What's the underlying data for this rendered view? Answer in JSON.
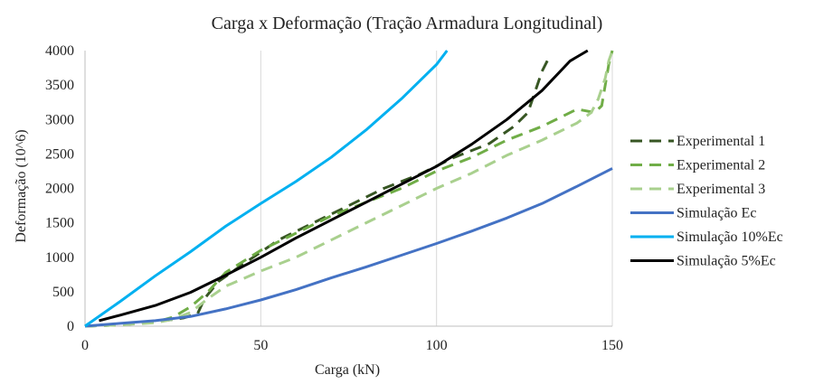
{
  "chart_data": {
    "type": "line",
    "title": "Carga x Deformação (Tração Armadura Longitudinal)",
    "xlabel": "Carga (kN)",
    "ylabel": "Deformação (10^6)",
    "xlim": [
      0,
      150
    ],
    "ylim": [
      0,
      4000
    ],
    "xticks": [
      "0",
      "50",
      "100",
      "150"
    ],
    "yticks": [
      "0",
      "500",
      "1000",
      "1500",
      "2000",
      "2500",
      "3000",
      "3500",
      "4000"
    ],
    "grid": "vertical",
    "legend_position": "right",
    "series": [
      {
        "name": "Experimental 1",
        "color": "#375623",
        "dash": "dashed",
        "x": [
          0,
          10,
          20,
          28,
          32,
          34,
          38,
          45,
          55,
          65,
          75,
          85,
          95,
          105,
          115,
          122,
          126,
          128,
          130,
          132
        ],
        "y": [
          0,
          20,
          60,
          120,
          180,
          400,
          650,
          900,
          1250,
          1500,
          1750,
          2000,
          2200,
          2450,
          2650,
          2900,
          3100,
          3400,
          3700,
          3900
        ]
      },
      {
        "name": "Experimental 2",
        "color": "#70AD47",
        "dash": "dashed",
        "x": [
          0,
          10,
          20,
          25,
          30,
          35,
          40,
          50,
          60,
          70,
          80,
          90,
          100,
          110,
          120,
          130,
          140,
          145,
          147,
          148,
          149,
          150
        ],
        "y": [
          0,
          20,
          60,
          130,
          280,
          500,
          780,
          1100,
          1350,
          1600,
          1800,
          2000,
          2250,
          2450,
          2700,
          2900,
          3150,
          3100,
          3200,
          3500,
          3800,
          4000
        ]
      },
      {
        "name": "Experimental 3",
        "color": "#A9D08E",
        "dash": "dashed",
        "x": [
          0,
          10,
          20,
          25,
          30,
          35,
          40,
          50,
          60,
          70,
          80,
          90,
          100,
          110,
          120,
          130,
          140,
          144,
          146,
          148,
          149,
          150
        ],
        "y": [
          0,
          20,
          50,
          100,
          200,
          400,
          580,
          800,
          1000,
          1250,
          1500,
          1750,
          2000,
          2220,
          2480,
          2700,
          2950,
          3100,
          3300,
          3600,
          3850,
          4000
        ]
      },
      {
        "name": "Simulação Ec",
        "color": "#4472C4",
        "dash": "solid",
        "x": [
          0,
          10,
          20,
          30,
          40,
          50,
          60,
          70,
          80,
          90,
          100,
          110,
          120,
          130,
          140,
          150
        ],
        "y": [
          0,
          40,
          80,
          140,
          250,
          380,
          530,
          700,
          860,
          1030,
          1200,
          1380,
          1570,
          1780,
          2030,
          2290
        ]
      },
      {
        "name": "Simulação 10%Ec",
        "color": "#00B0F0",
        "dash": "solid",
        "x": [
          0,
          10,
          20,
          30,
          40,
          50,
          60,
          70,
          80,
          90,
          100,
          103
        ],
        "y": [
          0,
          360,
          730,
          1080,
          1450,
          1780,
          2100,
          2450,
          2850,
          3300,
          3800,
          4000
        ]
      },
      {
        "name": "Simulação 5%Ec",
        "color": "#000000",
        "dash": "solid",
        "x": [
          4,
          10,
          20,
          30,
          40,
          50,
          60,
          70,
          80,
          90,
          100,
          110,
          120,
          130,
          138,
          143
        ],
        "y": [
          80,
          160,
          300,
          490,
          740,
          1000,
          1280,
          1540,
          1800,
          2060,
          2320,
          2640,
          3000,
          3420,
          3850,
          4000
        ]
      }
    ]
  }
}
